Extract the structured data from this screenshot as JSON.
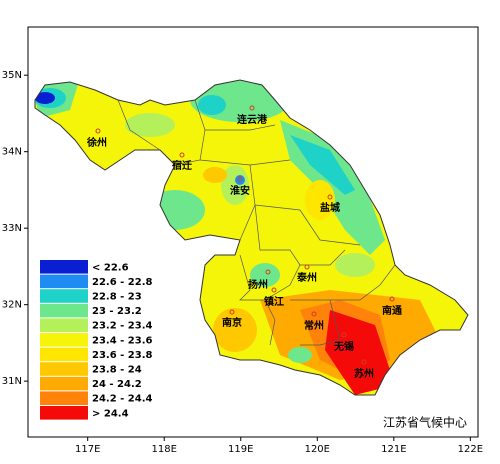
{
  "map": {
    "xlim": [
      116.22,
      122.1
    ],
    "ylim": [
      30.27,
      35.63
    ],
    "xticks": [
      {
        "value": 117,
        "label": "117E"
      },
      {
        "value": 118,
        "label": "118E"
      },
      {
        "value": 119,
        "label": "119E"
      },
      {
        "value": 120,
        "label": "120E"
      },
      {
        "value": 121,
        "label": "121E"
      },
      {
        "value": 122,
        "label": "122E"
      }
    ],
    "yticks": [
      {
        "value": 31,
        "label": "31N"
      },
      {
        "value": 32,
        "label": "32N"
      },
      {
        "value": 33,
        "label": "33N"
      },
      {
        "value": 34,
        "label": "34N"
      },
      {
        "value": 35,
        "label": "35N"
      }
    ],
    "cities": [
      "连云港",
      "徐州",
      "宿迁",
      "淮安",
      "盐城",
      "扬州",
      "泰州",
      "南京",
      "镇江",
      "常州",
      "南通",
      "无锡",
      "苏州"
    ],
    "legend": [
      {
        "label": "< 22.6",
        "color": "#0a1ed2"
      },
      {
        "label": "22.6 - 22.8",
        "color": "#1e8cf0"
      },
      {
        "label": "22.8 - 23",
        "color": "#1ed2c8"
      },
      {
        "label": "23 - 23.2",
        "color": "#6ee68c"
      },
      {
        "label": "23.2 - 23.4",
        "color": "#b4f05a"
      },
      {
        "label": "23.4 - 23.6",
        "color": "#f5f50a"
      },
      {
        "label": "23.6 - 23.8",
        "color": "#ffe600"
      },
      {
        "label": "23.8 - 24",
        "color": "#ffc800"
      },
      {
        "label": "24 - 24.2",
        "color": "#ffaa00"
      },
      {
        "label": "24.2 - 24.4",
        "color": "#ff820a"
      },
      {
        "label": "> 24.4",
        "color": "#f50a0a"
      }
    ],
    "credit": "江苏省气候中心"
  }
}
